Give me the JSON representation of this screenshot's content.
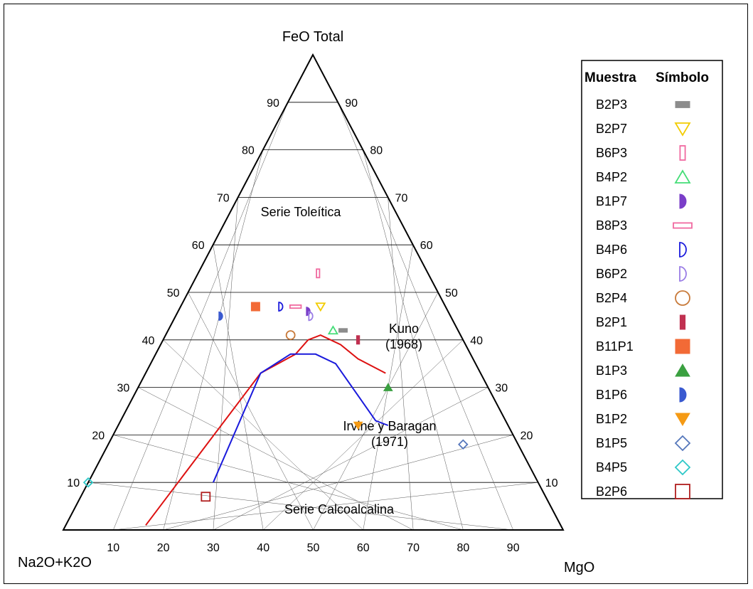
{
  "chart_data": {
    "type": "ternary",
    "apex_labels": {
      "top": "FeO Total",
      "left": "Na2O+K2O",
      "right": "MgO"
    },
    "ticks": [
      "10",
      "20",
      "30",
      "40",
      "50",
      "60",
      "70",
      "80",
      "90"
    ],
    "annotations": {
      "tholeiitic": "Serie Toleítica",
      "calcalkaline": "Serie Calcoalcalina",
      "kuno_name": "Kuno",
      "kuno_year": "(1968)",
      "irvine_name": "Irvine y Baragan",
      "irvine_year": "(1971)"
    },
    "boundary_lines": [
      {
        "ref": "Irvine y Baragan (1971)",
        "color": "#dd1111",
        "points": [
          [
            83,
            1,
            16
          ],
          [
            44,
            33,
            23
          ],
          [
            35,
            37,
            28
          ],
          [
            31,
            40,
            29
          ],
          [
            28,
            41,
            31
          ],
          [
            25,
            39,
            36
          ],
          [
            23,
            36,
            41
          ],
          [
            19,
            33,
            48
          ]
        ]
      },
      {
        "ref": "Kuno (1968)",
        "color": "#1a1adc",
        "points": [
          [
            65,
            10,
            25
          ],
          [
            44,
            33,
            23
          ],
          [
            36,
            37,
            27
          ],
          [
            31,
            37,
            32
          ],
          [
            28,
            35,
            37
          ],
          [
            26,
            23,
            51
          ],
          [
            24,
            22,
            54
          ]
        ]
      }
    ],
    "legend": {
      "header_sample": "Muestra",
      "header_symbol": "Símbolo",
      "entries": [
        {
          "name": "B2P3",
          "symbol": "rect-filled",
          "color": "#8c8c8c",
          "point": [
            23,
            42,
            35
          ]
        },
        {
          "name": "B2P7",
          "symbol": "triangle-down-open",
          "color": "#f2cc00",
          "point": [
            25,
            47,
            28
          ]
        },
        {
          "name": "B6P3",
          "symbol": "rect-v-open",
          "color": "#f06aa0",
          "point": [
            22,
            54,
            24
          ]
        },
        {
          "name": "B4P2",
          "symbol": "triangle-up-open",
          "color": "#44dd77",
          "point": [
            25,
            42,
            33
          ]
        },
        {
          "name": "B1P7",
          "symbol": "half-circle-filled",
          "color": "#7a3ec8",
          "point": [
            28,
            46,
            26
          ]
        },
        {
          "name": "B8P3",
          "symbol": "rect-h-open",
          "color": "#f06aa0",
          "point": [
            30,
            47,
            23
          ]
        },
        {
          "name": "B4P6",
          "symbol": "half-circle-open",
          "color": "#1a1adc",
          "point": [
            33,
            47,
            20
          ]
        },
        {
          "name": "B6P2",
          "symbol": "half-circle-open",
          "color": "#9a7de6",
          "point": [
            28,
            45,
            27
          ]
        },
        {
          "name": "B2P4",
          "symbol": "circle-open",
          "color": "#c87a3a",
          "point": [
            34,
            41,
            25
          ]
        },
        {
          "name": "B2P1",
          "symbol": "rect-v-filled",
          "color": "#c03050",
          "point": [
            21,
            40,
            39
          ]
        },
        {
          "name": "B11P1",
          "symbol": "square-filled",
          "color": "#f26a36",
          "point": [
            38,
            47,
            15
          ]
        },
        {
          "name": "B1P3",
          "symbol": "triangle-up-filled",
          "color": "#3aa040",
          "point": [
            20,
            30,
            50
          ]
        },
        {
          "name": "B1P6",
          "symbol": "half-circle-filled",
          "color": "#3a5ad0",
          "point": [
            46,
            45,
            9
          ]
        },
        {
          "name": "B1P2",
          "symbol": "triangle-down-filled",
          "color": "#f59a14",
          "point": [
            30,
            22,
            48
          ]
        },
        {
          "name": "B1P5",
          "symbol": "diamond-open",
          "color": "#5577bb",
          "point": [
            11,
            18,
            71
          ]
        },
        {
          "name": "B4P5",
          "symbol": "diamond-open",
          "color": "#2ec8c8",
          "point": [
            90,
            10,
            0
          ]
        },
        {
          "name": "B2P6",
          "symbol": "square-open",
          "color": "#b01e1e",
          "point": [
            68,
            7,
            25
          ]
        }
      ]
    }
  }
}
